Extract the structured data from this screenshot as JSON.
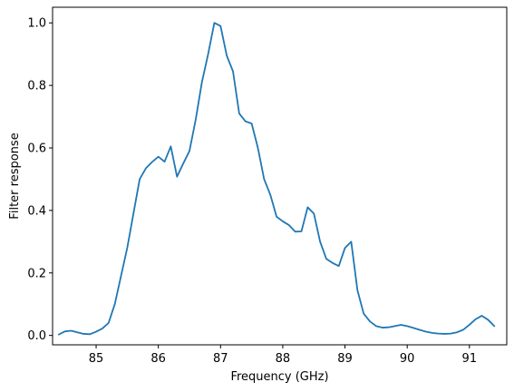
{
  "chart_data": {
    "type": "line",
    "title": "",
    "xlabel": "Frequency (GHz)",
    "ylabel": "Filter response",
    "xlim": [
      84.3,
      91.6
    ],
    "ylim": [
      -0.03,
      1.05
    ],
    "xticks": [
      85,
      86,
      87,
      88,
      89,
      90,
      91
    ],
    "xtick_labels": [
      "85",
      "86",
      "87",
      "88",
      "89",
      "90",
      "91"
    ],
    "yticks": [
      0.0,
      0.2,
      0.4,
      0.6,
      0.8,
      1.0
    ],
    "ytick_labels": [
      "0.0",
      "0.2",
      "0.4",
      "0.6",
      "0.8",
      "1.0"
    ],
    "grid": false,
    "color": "#1f77b4",
    "series": [
      {
        "x": [
          84.4,
          84.5,
          84.6,
          84.7,
          84.8,
          84.9,
          85.0,
          85.1,
          85.2,
          85.3,
          85.4,
          85.5,
          85.6,
          85.7,
          85.8,
          85.9,
          86.0,
          86.1,
          86.2,
          86.3,
          86.4,
          86.5,
          86.6,
          86.7,
          86.8,
          86.9,
          87.0,
          87.1,
          87.2,
          87.3,
          87.4,
          87.5,
          87.6,
          87.7,
          87.8,
          87.9,
          88.0,
          88.1,
          88.2,
          88.3,
          88.4,
          88.5,
          88.6,
          88.7,
          88.8,
          88.9,
          89.0,
          89.1,
          89.2,
          89.3,
          89.4,
          89.5,
          89.6,
          89.7,
          89.8,
          89.9,
          90.0,
          90.1,
          90.2,
          90.3,
          90.4,
          90.5,
          90.6,
          90.7,
          90.8,
          90.9,
          91.0,
          91.1,
          91.2,
          91.3,
          91.4
        ],
        "y": [
          0.003,
          0.013,
          0.015,
          0.01,
          0.005,
          0.004,
          0.012,
          0.022,
          0.04,
          0.1,
          0.19,
          0.28,
          0.39,
          0.5,
          0.535,
          0.555,
          0.572,
          0.556,
          0.605,
          0.508,
          0.55,
          0.59,
          0.69,
          0.81,
          0.9,
          1.0,
          0.99,
          0.895,
          0.845,
          0.71,
          0.685,
          0.678,
          0.6,
          0.5,
          0.45,
          0.38,
          0.365,
          0.353,
          0.332,
          0.333,
          0.41,
          0.39,
          0.3,
          0.245,
          0.232,
          0.222,
          0.28,
          0.3,
          0.145,
          0.07,
          0.045,
          0.03,
          0.025,
          0.026,
          0.03,
          0.034,
          0.03,
          0.024,
          0.018,
          0.012,
          0.008,
          0.006,
          0.005,
          0.006,
          0.01,
          0.018,
          0.034,
          0.052,
          0.063,
          0.05,
          0.03
        ]
      }
    ]
  }
}
